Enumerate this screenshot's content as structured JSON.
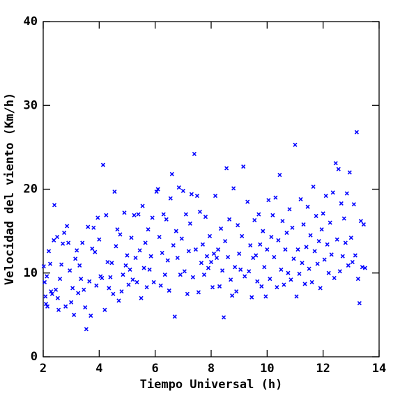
{
  "chart_data": {
    "type": "scatter",
    "xlabel": "Tiempo Universal (h)",
    "ylabel": "Velocidad del viento (Km/h)",
    "xlim": [
      2,
      14
    ],
    "xticks": [
      2,
      4,
      6,
      8,
      10,
      12,
      14
    ],
    "ylim": [
      0,
      40
    ],
    "yticks": [
      0,
      10,
      20,
      30,
      40
    ],
    "color": "#0000ff",
    "x": [
      2.02,
      2.05,
      2.08,
      2.1,
      2.13,
      2.15,
      2.2,
      2.25,
      2.28,
      2.32,
      2.38,
      2.4,
      2.45,
      2.5,
      2.52,
      2.55,
      2.6,
      2.65,
      2.7,
      2.75,
      2.8,
      2.85,
      2.9,
      2.95,
      3.0,
      3.05,
      3.1,
      3.15,
      3.2,
      3.25,
      3.3,
      3.35,
      3.4,
      3.45,
      3.5,
      3.54,
      3.6,
      3.65,
      3.7,
      3.75,
      3.8,
      3.85,
      3.9,
      3.95,
      4.0,
      4.05,
      4.1,
      4.14,
      4.2,
      4.25,
      4.3,
      4.35,
      4.4,
      4.45,
      4.5,
      4.55,
      4.6,
      4.65,
      4.7,
      4.75,
      4.8,
      4.85,
      4.9,
      4.95,
      5.0,
      5.05,
      5.1,
      5.15,
      5.2,
      5.25,
      5.3,
      5.35,
      5.4,
      5.45,
      5.5,
      5.55,
      5.6,
      5.65,
      5.7,
      5.75,
      5.8,
      5.85,
      5.9,
      5.95,
      6.05,
      6.1,
      6.15,
      6.2,
      6.25,
      6.3,
      6.35,
      6.4,
      6.45,
      6.5,
      6.55,
      6.6,
      6.65,
      6.7,
      6.75,
      6.8,
      6.85,
      6.9,
      6.95,
      7.0,
      7.05,
      7.1,
      7.15,
      7.2,
      7.25,
      7.3,
      7.35,
      7.4,
      7.45,
      7.5,
      7.55,
      7.6,
      7.65,
      7.7,
      7.75,
      7.8,
      7.85,
      7.9,
      7.95,
      8.0,
      8.05,
      8.1,
      8.15,
      8.2,
      8.25,
      8.3,
      8.35,
      8.4,
      8.45,
      8.5,
      8.55,
      8.6,
      8.65,
      8.7,
      8.75,
      8.8,
      8.85,
      8.9,
      8.95,
      9.0,
      9.05,
      9.1,
      9.15,
      9.2,
      9.3,
      9.35,
      9.4,
      9.45,
      9.5,
      9.55,
      9.6,
      9.65,
      9.7,
      9.75,
      9.8,
      9.85,
      9.9,
      9.95,
      10.0,
      10.05,
      10.1,
      10.15,
      10.2,
      10.25,
      10.3,
      10.35,
      10.4,
      10.45,
      10.5,
      10.55,
      10.6,
      10.65,
      10.7,
      10.75,
      10.8,
      10.85,
      10.9,
      10.95,
      11.0,
      11.05,
      11.1,
      11.15,
      11.2,
      11.25,
      11.3,
      11.35,
      11.4,
      11.45,
      11.5,
      11.55,
      11.6,
      11.65,
      11.7,
      11.75,
      11.8,
      11.85,
      11.9,
      11.95,
      12.0,
      12.05,
      12.1,
      12.15,
      12.2,
      12.25,
      12.3,
      12.35,
      12.4,
      12.45,
      12.5,
      12.55,
      12.6,
      12.65,
      12.7,
      12.75,
      12.8,
      12.85,
      12.9,
      12.95,
      13.0,
      13.05,
      13.1,
      13.15,
      13.2,
      13.25,
      13.3,
      13.35,
      13.4,
      13.45,
      13.5
    ],
    "values": [
      10.8,
      8.9,
      7.2,
      6.3,
      9.6,
      6.0,
      12.6,
      11.1,
      7.8,
      7.5,
      13.9,
      18.1,
      8.0,
      14.3,
      7.0,
      5.6,
      9.3,
      11.0,
      13.5,
      14.8,
      6.0,
      15.6,
      13.6,
      10.3,
      6.5,
      8.2,
      5.0,
      11.7,
      12.7,
      7.6,
      10.9,
      9.3,
      13.6,
      8.0,
      5.9,
      3.3,
      15.5,
      9.0,
      4.9,
      12.9,
      15.4,
      12.5,
      8.5,
      16.6,
      14.0,
      9.6,
      9.4,
      22.9,
      5.6,
      16.9,
      11.3,
      8.2,
      9.5,
      11.2,
      7.5,
      19.7,
      13.2,
      15.2,
      6.7,
      14.6,
      7.8,
      9.8,
      17.2,
      10.9,
      12.1,
      8.6,
      10.4,
      14.2,
      9.2,
      16.9,
      11.8,
      8.9,
      17.0,
      12.7,
      7.0,
      18.0,
      10.6,
      13.6,
      8.3,
      15.2,
      10.4,
      12.0,
      16.6,
      8.9,
      19.7,
      20.0,
      14.3,
      8.5,
      12.4,
      17.0,
      9.8,
      16.4,
      11.5,
      7.9,
      18.9,
      21.8,
      13.3,
      4.8,
      15.0,
      11.8,
      20.2,
      9.8,
      14.1,
      19.8,
      10.2,
      17.0,
      7.5,
      12.6,
      15.9,
      19.4,
      9.5,
      24.2,
      12.8,
      19.2,
      7.7,
      17.3,
      11.2,
      13.4,
      9.8,
      16.7,
      12.0,
      10.6,
      14.4,
      11.3,
      8.3,
      12.3,
      19.2,
      11.8,
      12.8,
      8.4,
      15.3,
      10.3,
      4.7,
      13.8,
      22.5,
      11.9,
      16.4,
      9.2,
      7.3,
      20.1,
      10.7,
      7.8,
      15.7,
      12.3,
      10.4,
      14.4,
      22.7,
      9.6,
      18.5,
      10.2,
      13.3,
      7.1,
      11.8,
      16.3,
      12.1,
      9.0,
      17.0,
      13.4,
      8.4,
      15.0,
      10.7,
      7.2,
      12.8,
      18.7,
      9.3,
      14.3,
      16.9,
      11.9,
      19.0,
      8.3,
      13.9,
      21.7,
      10.4,
      16.2,
      8.6,
      12.8,
      14.8,
      10.0,
      17.6,
      9.2,
      15.4,
      11.7,
      25.3,
      7.2,
      12.8,
      9.9,
      18.8,
      11.2,
      15.8,
      8.7,
      13.1,
      17.9,
      10.5,
      14.5,
      8.9,
      20.3,
      12.6,
      16.8,
      11.1,
      13.8,
      8.2,
      15.2,
      17.1,
      11.6,
      19.2,
      13.4,
      10.0,
      16.0,
      12.2,
      19.6,
      9.4,
      23.1,
      14.0,
      22.4,
      10.2,
      18.3,
      12.0,
      16.5,
      13.6,
      19.5,
      10.9,
      22.0,
      14.2,
      11.3,
      18.2,
      12.1,
      26.8,
      9.3,
      6.4,
      16.2,
      10.7,
      15.8,
      10.6
    ]
  }
}
